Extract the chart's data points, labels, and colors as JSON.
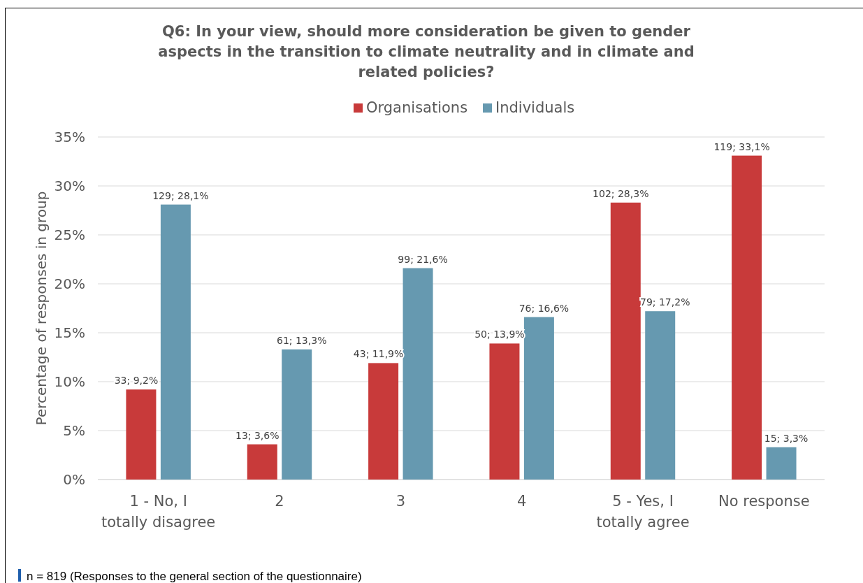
{
  "chart_data": {
    "type": "bar",
    "title": "Q6: In your view, should more consideration be given to gender aspects in the transition to climate neutrality and in climate and related policies?",
    "ylabel": "Percentage of responses in group",
    "categories": [
      "1 - No, I totally disagree",
      "2",
      "3",
      "4",
      "5 - Yes, I totally agree",
      "No response"
    ],
    "series": [
      {
        "name": "Organisations",
        "color": "#c83a3a",
        "values": [
          9.2,
          3.6,
          11.9,
          13.9,
          28.3,
          33.1
        ],
        "value_labels": [
          "33; 9,2%",
          "13; 3,6%",
          "43; 11,9%",
          "50; 13,9%",
          "102; 28,3%",
          "119; 33,1%"
        ]
      },
      {
        "name": "Individuals",
        "color": "#6699b0",
        "values": [
          28.1,
          13.3,
          21.6,
          16.6,
          17.2,
          3.3
        ],
        "value_labels": [
          "129; 28,1%",
          "61; 13,3%",
          "99; 21,6%",
          "76; 16,6%",
          "79; 17,2%",
          "15; 3,3%"
        ]
      }
    ],
    "ylim": [
      0,
      35
    ],
    "yticks": [
      {
        "value": 0,
        "label": "0%"
      },
      {
        "value": 5,
        "label": "5%"
      },
      {
        "value": 10,
        "label": "10%"
      },
      {
        "value": 15,
        "label": "15%"
      },
      {
        "value": 20,
        "label": "20%"
      },
      {
        "value": 25,
        "label": "25%"
      },
      {
        "value": 30,
        "label": "30%"
      },
      {
        "value": 35,
        "label": "35%"
      }
    ],
    "grid": "y",
    "legend": "top",
    "annotations": [
      "n = 819 (Responses to the general section of the questionnaire)"
    ]
  }
}
